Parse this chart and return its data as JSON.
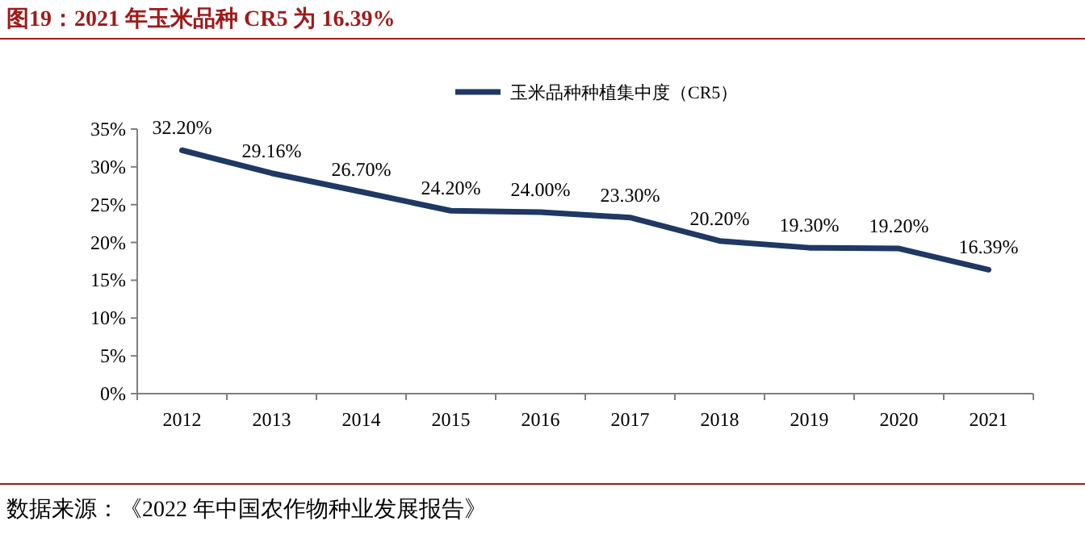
{
  "chart_data": {
    "type": "line",
    "title": "图19：2021 年玉米品种 CR5 为 16.39%",
    "categories": [
      "2012",
      "2013",
      "2014",
      "2015",
      "2016",
      "2017",
      "2018",
      "2019",
      "2020",
      "2021"
    ],
    "series": [
      {
        "name": "玉米品种种植集中度（CR5）",
        "color": "#1f3864",
        "values": [
          32.2,
          29.16,
          26.7,
          24.2,
          24.0,
          23.3,
          20.2,
          19.3,
          19.2,
          16.39
        ],
        "value_labels": [
          "32.20%",
          "29.16%",
          "26.70%",
          "24.20%",
          "24.00%",
          "23.30%",
          "20.20%",
          "19.30%",
          "19.20%",
          "16.39%"
        ]
      }
    ],
    "ylim": [
      0,
      35
    ],
    "yticks": [
      {
        "value": 0,
        "label": "0%"
      },
      {
        "value": 5,
        "label": "5%"
      },
      {
        "value": 10,
        "label": "10%"
      },
      {
        "value": 15,
        "label": "15%"
      },
      {
        "value": 20,
        "label": "20%"
      },
      {
        "value": 25,
        "label": "25%"
      },
      {
        "value": 30,
        "label": "30%"
      },
      {
        "value": 35,
        "label": "35%"
      }
    ],
    "legend": "top",
    "annotations": [
      "数据来源：《2022 年中国农作物种业发展报告》"
    ]
  }
}
